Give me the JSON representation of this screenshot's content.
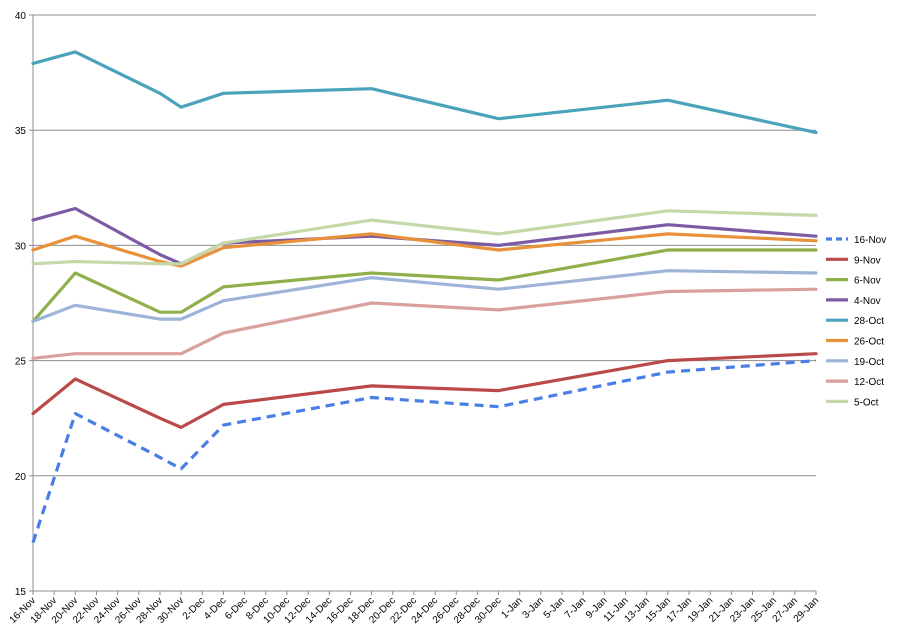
{
  "chart_data": {
    "type": "line",
    "ylim": [
      15,
      40
    ],
    "yticks": [
      15,
      20,
      25,
      30,
      35,
      40
    ],
    "grid": true,
    "legend_position": "right",
    "x_tick_labels": [
      "16-Nov",
      "18-Nov",
      "20-Nov",
      "22-Nov",
      "24-Nov",
      "26-Nov",
      "28-Nov",
      "30-Nov",
      "2-Dec",
      "4-Dec",
      "6-Dec",
      "8-Dec",
      "10-Dec",
      "12-Dec",
      "14-Dec",
      "16-Dec",
      "18-Dec",
      "20-Dec",
      "22-Dec",
      "24-Dec",
      "26-Dec",
      "28-Dec",
      "30-Dec",
      "1-Jan",
      "3-Jan",
      "5-Jan",
      "7-Jan",
      "9-Jan",
      "11-Jan",
      "13-Jan",
      "15-Jan",
      "17-Jan",
      "19-Jan",
      "21-Jan",
      "23-Jan",
      "25-Jan",
      "27-Jan",
      "29-Jan"
    ],
    "x": [
      "16-Nov",
      "20-Nov",
      "28-Nov",
      "30-Nov",
      "4-Dec",
      "18-Dec",
      "30-Dec",
      "15-Jan",
      "29-Jan"
    ],
    "series": [
      {
        "name": "16-Nov",
        "color": "#4a7ee6",
        "dashed": true,
        "values": [
          17.1,
          22.7,
          20.8,
          20.3,
          22.2,
          23.4,
          23.0,
          24.5,
          25.0
        ]
      },
      {
        "name": "9-Nov",
        "color": "#b94a48",
        "dashed": false,
        "values": [
          22.7,
          24.2,
          22.5,
          22.1,
          23.1,
          23.9,
          23.7,
          25.0,
          25.3
        ]
      },
      {
        "name": "6-Nov",
        "color": "#8fb04b",
        "dashed": false,
        "values": [
          26.7,
          28.8,
          27.1,
          27.1,
          28.2,
          28.8,
          28.5,
          29.8,
          29.8
        ]
      },
      {
        "name": "4-Nov",
        "color": "#7b5ba3",
        "dashed": false,
        "values": [
          31.1,
          31.6,
          29.6,
          29.2,
          30.1,
          30.4,
          30.0,
          30.9,
          30.4
        ]
      },
      {
        "name": "28-Oct",
        "color": "#4aa3bb",
        "dashed": false,
        "values": [
          37.9,
          38.4,
          36.6,
          36.0,
          36.6,
          36.8,
          35.5,
          36.3,
          34.9
        ]
      },
      {
        "name": "26-Oct",
        "color": "#e8913a",
        "dashed": false,
        "values": [
          29.8,
          30.4,
          29.3,
          29.1,
          29.9,
          30.5,
          29.8,
          30.5,
          30.2
        ]
      },
      {
        "name": "19-Oct",
        "color": "#9db4d8",
        "dashed": false,
        "values": [
          26.7,
          27.4,
          26.8,
          26.8,
          27.6,
          28.6,
          28.1,
          28.9,
          28.8
        ]
      },
      {
        "name": "12-Oct",
        "color": "#d9a09e",
        "dashed": false,
        "values": [
          25.1,
          25.3,
          25.3,
          25.3,
          26.2,
          27.5,
          27.2,
          28.0,
          28.1
        ]
      },
      {
        "name": "5-Oct",
        "color": "#c4d8a8",
        "dashed": false,
        "values": [
          29.2,
          29.3,
          29.2,
          29.2,
          30.1,
          31.1,
          30.5,
          31.5,
          31.3
        ]
      }
    ]
  }
}
